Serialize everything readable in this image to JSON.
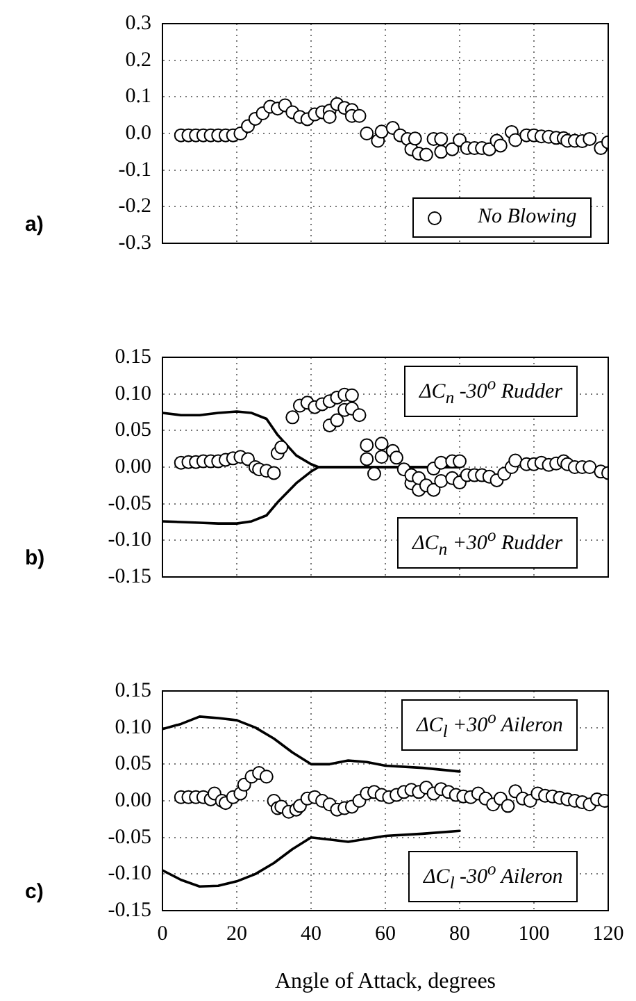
{
  "chart_data": [
    {
      "type": "scatter",
      "annotations": [
        "a)"
      ],
      "xlim": [
        0,
        120
      ],
      "xticks": [
        0,
        20,
        40,
        60,
        80,
        100,
        120
      ],
      "ylim": [
        -0.3,
        0.3
      ],
      "yticks": [
        -0.3,
        -0.2,
        -0.1,
        {
          "value": 0,
          "label": "0.0"
        },
        0.1,
        0.2,
        0.3
      ],
      "tick_labels": "y",
      "grid": true,
      "legend": "bottom right",
      "marker": "circle",
      "series": [
        {
          "name": "No Blowing",
          "color": "#000000",
          "x": [
            5,
            7,
            9,
            11,
            13,
            15,
            17,
            19,
            21,
            23,
            25,
            27,
            29,
            31,
            33,
            35,
            37,
            39,
            41,
            43,
            45,
            45,
            47,
            49,
            51,
            51,
            53,
            55,
            58,
            59,
            62,
            64,
            66,
            67,
            68,
            69,
            71,
            73,
            75,
            75,
            78,
            80,
            82,
            84,
            86,
            88,
            90,
            91,
            94,
            95,
            98,
            100,
            102,
            104,
            106,
            108,
            109,
            111,
            113,
            115,
            118,
            120
          ],
          "values": [
            -0.005,
            -0.005,
            -0.005,
            -0.005,
            -0.005,
            -0.005,
            -0.005,
            -0.005,
            0.0,
            0.02,
            0.04,
            0.055,
            0.073,
            0.068,
            0.077,
            0.058,
            0.045,
            0.039,
            0.052,
            0.058,
            0.062,
            0.045,
            0.08,
            0.07,
            0.064,
            0.048,
            0.048,
            0.0,
            -0.02,
            0.005,
            0.015,
            -0.005,
            -0.015,
            -0.043,
            -0.014,
            -0.055,
            -0.058,
            -0.015,
            -0.015,
            -0.05,
            -0.043,
            -0.018,
            -0.04,
            -0.04,
            -0.04,
            -0.043,
            -0.02,
            -0.033,
            0.004,
            -0.018,
            -0.005,
            -0.005,
            -0.008,
            -0.009,
            -0.012,
            -0.013,
            -0.02,
            -0.02,
            -0.021,
            -0.015,
            -0.04,
            -0.024
          ]
        }
      ]
    },
    {
      "type": "scatter",
      "annotations": [
        "b)"
      ],
      "xlim": [
        0,
        120
      ],
      "xticks": [
        0,
        20,
        40,
        60,
        80,
        100,
        120
      ],
      "ylim": [
        -0.15,
        0.15
      ],
      "yticks": [
        -0.15,
        {
          "value": -0.1,
          "label": "-0.10"
        },
        -0.05,
        {
          "value": 0,
          "label": "0.00"
        },
        0.05,
        {
          "value": 0.1,
          "label": "0.10"
        },
        0.15
      ],
      "tick_labels": "y",
      "grid": true,
      "marker": "circle",
      "series": [
        {
          "color": "#000000",
          "x": [
            5,
            7,
            9,
            11,
            13,
            15,
            17,
            19,
            21,
            23,
            25,
            26,
            28,
            30,
            31,
            32,
            35,
            37,
            39,
            41,
            43,
            45,
            45,
            47,
            47,
            49,
            49,
            51,
            51,
            53,
            55,
            55,
            57,
            59,
            59,
            62,
            63,
            65,
            67,
            67,
            69,
            69,
            71,
            73,
            73,
            75,
            75,
            78,
            78,
            80,
            80,
            82,
            84,
            86,
            88,
            90,
            92,
            94,
            95,
            98,
            100,
            102,
            104,
            106,
            108,
            109,
            111,
            113,
            115,
            118,
            120
          ],
          "values": [
            0.006,
            0.007,
            0.007,
            0.008,
            0.008,
            0.008,
            0.01,
            0.012,
            0.014,
            0.011,
            0.0,
            -0.003,
            -0.005,
            -0.008,
            0.019,
            0.027,
            0.068,
            0.084,
            0.088,
            0.082,
            0.086,
            0.09,
            0.057,
            0.095,
            0.064,
            0.099,
            0.078,
            0.098,
            0.08,
            0.071,
            0.03,
            0.011,
            -0.009,
            0.032,
            0.014,
            0.022,
            0.013,
            -0.003,
            -0.022,
            -0.011,
            -0.031,
            -0.015,
            -0.025,
            -0.031,
            -0.002,
            0.006,
            -0.019,
            0.008,
            -0.015,
            0.008,
            -0.021,
            -0.011,
            -0.011,
            -0.011,
            -0.013,
            -0.018,
            -0.009,
            0.0,
            0.009,
            0.004,
            0.004,
            0.006,
            0.003,
            0.005,
            0.008,
            0.004,
            0.0,
            0.0,
            0.0,
            -0.006,
            -0.008
          ]
        },
        {
          "name": "ΔC$_{n}$ -30$^{o}$ Rudder",
          "type": "line",
          "marker": "none",
          "color": "#000000",
          "x": [
            0,
            5,
            10,
            15,
            20,
            24,
            28,
            31,
            36,
            40,
            42,
            50,
            60,
            70,
            80
          ],
          "values": [
            0.074,
            0.071,
            0.071,
            0.074,
            0.076,
            0.074,
            0.066,
            0.044,
            0.016,
            0.004,
            0,
            0,
            0,
            0,
            0
          ]
        },
        {
          "name": "ΔC$_{n}$ +30$^{o}$ Rudder",
          "type": "line",
          "marker": "none",
          "color": "#000000",
          "x": [
            0,
            5,
            10,
            15,
            20,
            24,
            28,
            31,
            36,
            40,
            42,
            50,
            60,
            70,
            80
          ],
          "values": [
            -0.074,
            -0.075,
            -0.076,
            -0.077,
            -0.077,
            -0.074,
            -0.066,
            -0.048,
            -0.022,
            -0.006,
            0,
            0,
            0,
            0,
            0
          ]
        }
      ]
    },
    {
      "type": "scatter",
      "annotations": [
        "c)"
      ],
      "xlabel": "Angle of Attack, degrees",
      "xlim": [
        0,
        120
      ],
      "xticks": [
        0,
        20,
        40,
        60,
        80,
        100,
        120
      ],
      "ylim": [
        -0.15,
        0.15
      ],
      "yticks": [
        -0.15,
        {
          "value": -0.1,
          "label": "-0.10"
        },
        -0.05,
        {
          "value": 0,
          "label": "0.00"
        },
        0.05,
        {
          "value": 0.1,
          "label": "0.10"
        },
        0.15
      ],
      "grid": true,
      "marker": "circle",
      "series": [
        {
          "color": "#000000",
          "x": [
            5,
            7,
            9,
            11,
            13,
            14,
            16,
            17,
            19,
            21,
            22,
            24,
            26,
            28,
            30,
            31,
            32,
            34,
            36,
            37,
            39,
            41,
            43,
            45,
            47,
            49,
            51,
            53,
            55,
            57,
            59,
            61,
            63,
            65,
            67,
            69,
            71,
            73,
            75,
            77,
            79,
            81,
            83,
            85,
            87,
            89,
            91,
            93,
            95,
            97,
            99,
            101,
            103,
            105,
            107,
            109,
            111,
            113,
            115,
            117,
            119
          ],
          "values": [
            0.005,
            0.005,
            0.005,
            0.005,
            0.002,
            0.01,
            0.0,
            -0.003,
            0.005,
            0.01,
            0.022,
            0.033,
            0.038,
            0.033,
            0.0,
            -0.01,
            -0.008,
            -0.015,
            -0.012,
            -0.007,
            0.003,
            0.005,
            0.0,
            -0.005,
            -0.012,
            -0.01,
            -0.008,
            0.0,
            0.01,
            0.012,
            0.008,
            0.005,
            0.008,
            0.012,
            0.015,
            0.012,
            0.018,
            0.01,
            0.016,
            0.012,
            0.008,
            0.006,
            0.005,
            0.01,
            0.003,
            -0.005,
            0.003,
            -0.007,
            0.013,
            0.003,
            0.0,
            0.01,
            0.007,
            0.006,
            0.004,
            0.002,
            0.0,
            -0.002,
            -0.005,
            0.002,
            0.0
          ]
        },
        {
          "name": "ΔC$_{l}$ +30$^{o}$ Aileron",
          "type": "line",
          "marker": "none",
          "color": "#000000",
          "x": [
            0,
            5,
            10,
            15,
            20,
            25,
            30,
            35,
            40,
            45,
            50,
            55,
            60,
            70,
            80
          ],
          "values": [
            0.098,
            0.105,
            0.115,
            0.113,
            0.11,
            0.1,
            0.085,
            0.066,
            0.05,
            0.05,
            0.055,
            0.053,
            0.048,
            0.045,
            0.04
          ]
        },
        {
          "name": "ΔC$_{l}$ -30$^{o}$ Aileron",
          "type": "line",
          "marker": "none",
          "color": "#000000",
          "x": [
            0,
            5,
            10,
            15,
            20,
            25,
            30,
            35,
            40,
            45,
            50,
            55,
            60,
            70,
            80
          ],
          "values": [
            -0.095,
            -0.108,
            -0.117,
            -0.116,
            -0.11,
            -0.1,
            -0.085,
            -0.066,
            -0.05,
            -0.053,
            -0.056,
            -0.052,
            -0.048,
            -0.045,
            -0.041
          ]
        }
      ]
    }
  ]
}
